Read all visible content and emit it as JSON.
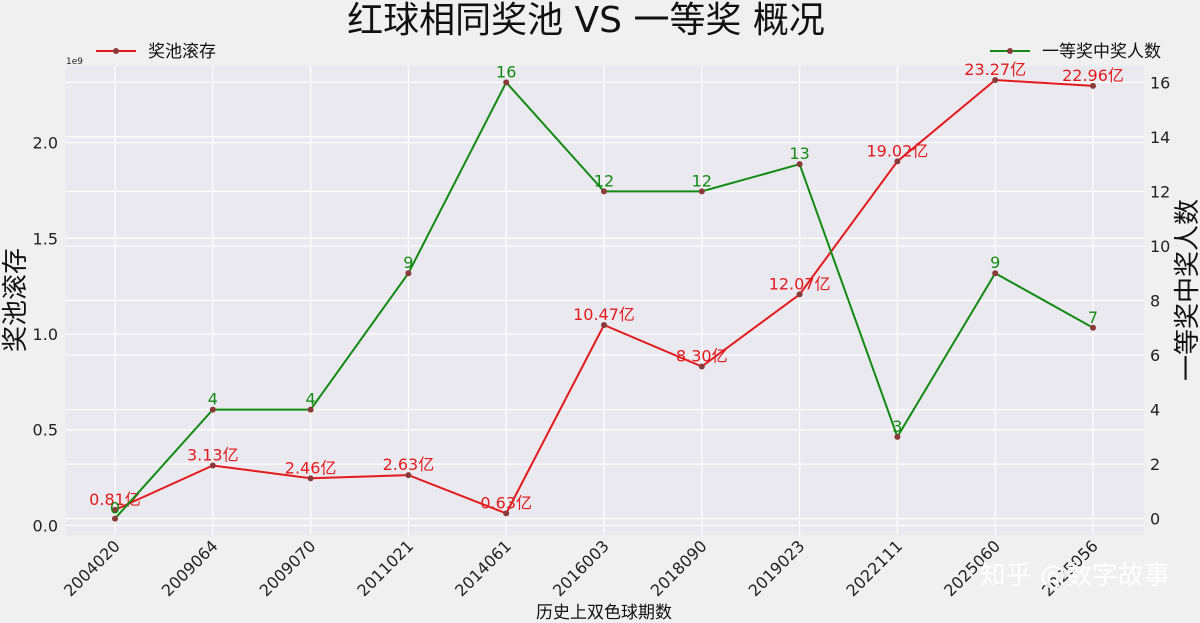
{
  "chart_data": {
    "type": "line",
    "title": "红球相同奖池 VS 一等奖 概况",
    "xlabel": "历史上双色球期数",
    "ylabel_left": "奖池滚存",
    "ylabel_right": "一等奖中奖人数",
    "y_left_exponent": "1e9",
    "ylim_left": [
      -0.05,
      2.4
    ],
    "ylim_right": [
      -0.6,
      16.6
    ],
    "y_left_ticks": [
      "0.0",
      "0.5",
      "1.0",
      "1.5",
      "2.0"
    ],
    "y_left_tick_values": [
      0,
      0.5,
      1.0,
      1.5,
      2.0
    ],
    "y_right_ticks": [
      "0",
      "2",
      "4",
      "6",
      "8",
      "10",
      "12",
      "14",
      "16"
    ],
    "y_right_tick_values": [
      0,
      2,
      4,
      6,
      8,
      10,
      12,
      14,
      16
    ],
    "categories": [
      "2004020",
      "2009064",
      "2009070",
      "2011021",
      "2014061",
      "2016003",
      "2018090",
      "2019023",
      "2022111",
      "2025060",
      "2025056"
    ],
    "series": [
      {
        "name": "奖池滚存",
        "axis": "left",
        "color": "#e31a1c",
        "values": [
          0.081,
          0.313,
          0.246,
          0.263,
          0.063,
          1.047,
          0.83,
          1.207,
          1.902,
          2.327,
          2.296
        ],
        "labels": [
          "0.81亿",
          "3.13亿",
          "2.46亿",
          "2.63亿",
          "0.63亿",
          "10.47亿",
          "8.30亿",
          "12.07亿",
          "19.02亿",
          "23.27亿",
          "22.96亿"
        ]
      },
      {
        "name": "一等奖中奖人数",
        "axis": "right",
        "color": "#138a13",
        "values": [
          0,
          4,
          4,
          9,
          16,
          12,
          12,
          13,
          3,
          9,
          7
        ],
        "labels": [
          "0",
          "4",
          "4",
          "9",
          "16",
          "12",
          "12",
          "13",
          "3",
          "9",
          "7"
        ]
      }
    ],
    "legend": [
      {
        "label": "奖池滚存",
        "position": "top-left"
      },
      {
        "label": "一等奖中奖人数",
        "position": "top-right"
      }
    ],
    "grid": true,
    "marker_color": "#8b3a3a"
  },
  "watermark": "知乎 @数字故事"
}
